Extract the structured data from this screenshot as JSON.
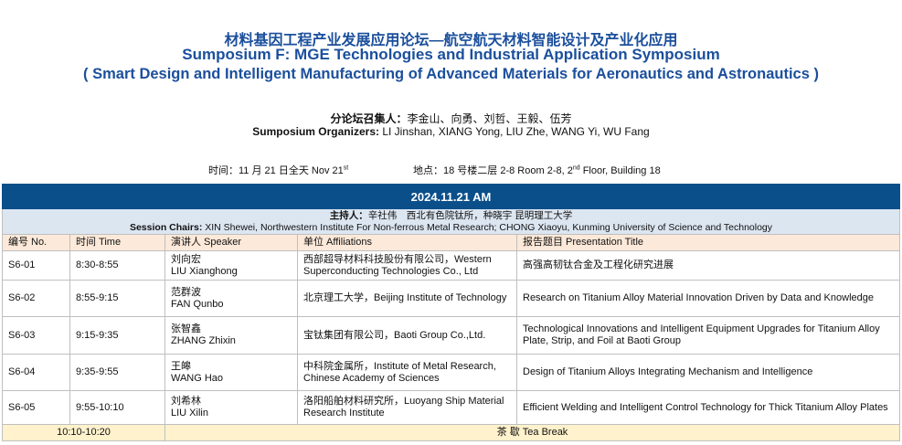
{
  "title": {
    "cn": "材料基因工程产业发展应用论坛—航空航天材料智能设计及产业化应用",
    "en1": "Sumposium F: MGE Technologies and Industrial Application Symposium",
    "en2": "( Smart Design and Intelligent Manufacturing of Advanced Materials for Aeronautics and Astronautics )"
  },
  "organizers": {
    "cn_label": "分论坛召集人：",
    "cn_names": "李金山、向勇、刘哲、王毅、伍芳",
    "en_label": "Sumposium Organizers:",
    "en_names": " LI Jinshan, XIANG Yong,  LIU Zhe, WANG Yi,  WU Fang"
  },
  "time": {
    "text": "时间：11 月 21 日全天  Nov 21",
    "sup": "st"
  },
  "place": {
    "text": "地点：18 号楼二层 2-8  Room 2-8, 2",
    "sup": "nd",
    "rest": " Floor, Building 18"
  },
  "session": {
    "date": "2024.11.21 AM",
    "chairs_cn_label": "主持人：",
    "chairs_cn": "辛社伟　西北有色院钛所，种晓宇 昆明理工大学",
    "chairs_en_label": "Session Chairs:",
    "chairs_en": " XIN Shewei, Northwestern Institute For Non-ferrous Metal Research; CHONG Xiaoyu, Kunming University of Science and Technology"
  },
  "columns": [
    "编号 No.",
    "时间 Time",
    "演讲人 Speaker",
    "单位 Affiliations",
    "报告题目 Presentation Title"
  ],
  "rows": [
    {
      "no": "S6-01",
      "time": "8:30-8:55",
      "speaker_cn": "刘向宏",
      "speaker_en": "LIU Xianghong",
      "affiliation": "西部超导材料科技股份有限公司，Western Superconducting Technologies Co., Ltd",
      "title": "高强高韧钛合金及工程化研究进展"
    },
    {
      "no": "S6-02",
      "time": "8:55-9:15",
      "speaker_cn": "范群波",
      "speaker_en": "FAN Qunbo",
      "affiliation": "北京理工大学，Beijing Institute of Technology",
      "title": " Research on Titanium Alloy Material Innovation Driven by Data and Knowledge"
    },
    {
      "no": "S6-03",
      "time": "9:15-9:35",
      "speaker_cn": "张智鑫",
      "speaker_en": "ZHANG Zhixin",
      "affiliation": "宝钛集团有限公司，Baoti Group Co.,Ltd.",
      "title": "Technological Innovations and Intelligent Equipment Upgrades for Titanium Alloy Plate, Strip, and Foil at Baoti Group"
    },
    {
      "no": "S6-04",
      "time": "9:35-9:55",
      "speaker_cn": "王皞",
      "speaker_en": "WANG Hao",
      "affiliation": "中科院金属所，Institute of Metal Research, Chinese Academy of Sciences",
      "title": "Design of Titanium Alloys Integrating Mechanism and Intelligence"
    },
    {
      "no": "S6-05",
      "time": "9:55-10:10",
      "speaker_cn": "刘希林",
      "speaker_en": "LIU Xilin",
      "affiliation": "洛阳船舶材料研究所，Luoyang Ship Material Research Institute",
      "title": "Efficient Welding and Intelligent Control Technology for Thick Titanium Alloy Plates"
    }
  ],
  "break": {
    "time": "10:10-10:20",
    "label": "茶  歇  Tea Break"
  }
}
